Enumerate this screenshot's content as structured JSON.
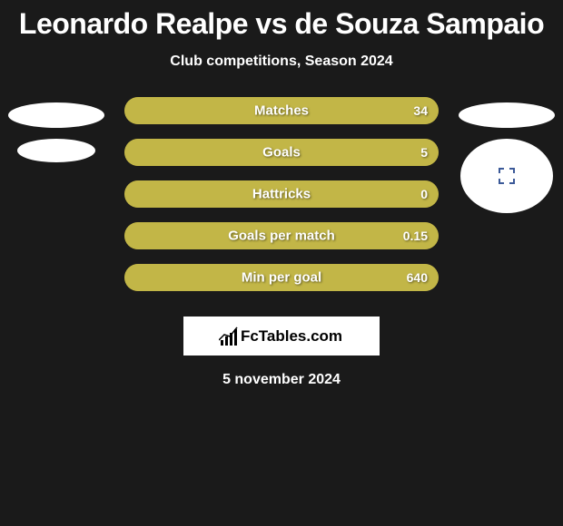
{
  "title": "Leonardo Realpe vs de Souza Sampaio",
  "subtitle": "Club competitions, Season 2024",
  "date": "5 november 2024",
  "logo_text": "FcTables.com",
  "colors": {
    "background": "#1a1a1a",
    "bar_left": "#b0a336",
    "bar_right": "#b0a336",
    "bar_right_light": "#c2b647",
    "text": "#ffffff"
  },
  "stats": [
    {
      "label": "Matches",
      "value_right": "34",
      "left_pct": 0,
      "right_pct": 100
    },
    {
      "label": "Goals",
      "value_right": "5",
      "left_pct": 0,
      "right_pct": 100
    },
    {
      "label": "Hattricks",
      "value_right": "0",
      "left_pct": 0,
      "right_pct": 100
    },
    {
      "label": "Goals per match",
      "value_right": "0.15",
      "left_pct": 0,
      "right_pct": 100
    },
    {
      "label": "Min per goal",
      "value_right": "640",
      "left_pct": 0,
      "right_pct": 100
    }
  ],
  "left_badges": {
    "ellipses": 2
  },
  "right_badges": {
    "ellipses": 1,
    "avatar": true
  }
}
